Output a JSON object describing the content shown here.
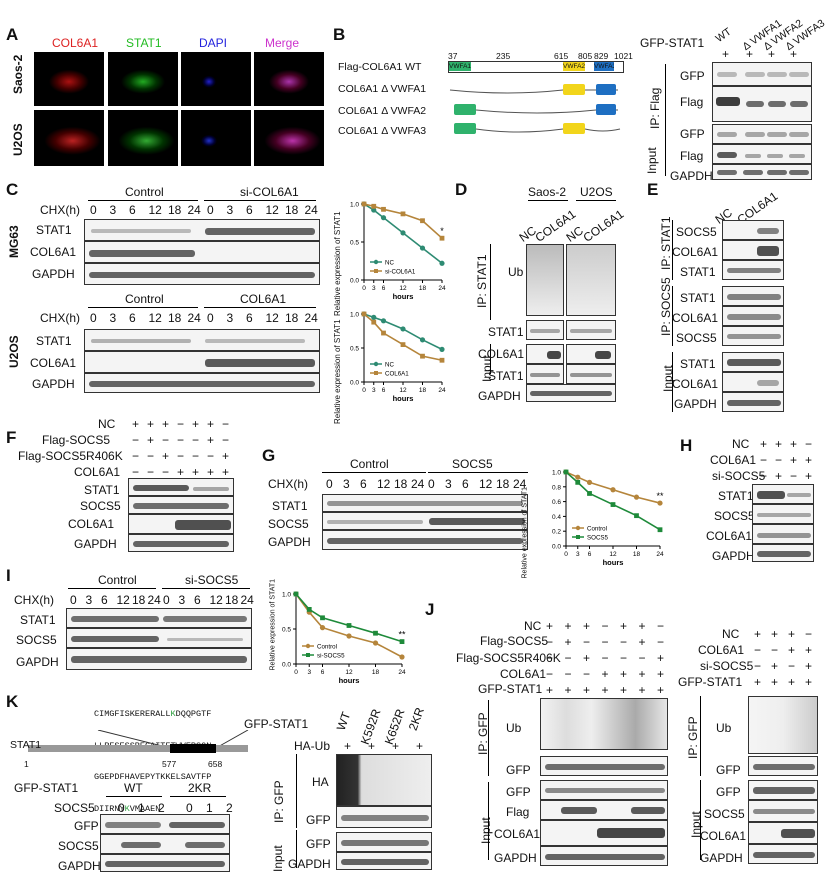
{
  "panels": {
    "A": {
      "label": "A",
      "cols": [
        "COL6A1",
        "STAT1",
        "DAPI",
        "Merge"
      ],
      "col_colors": [
        "#d22",
        "#2b2",
        "#22d",
        "#c3c"
      ],
      "rows": [
        "Saos-2",
        "U2OS"
      ]
    },
    "B": {
      "label": "B",
      "constructs": [
        "Flag-COL6A1 WT",
        "COL6A1 Δ VWFA1",
        "COL6A1 Δ VWFA2",
        "COL6A1 Δ VWFA3"
      ],
      "positions": [
        "37",
        "235",
        "615",
        "805",
        "829",
        "1021"
      ],
      "domains": [
        "VWFA1",
        "VWFA2",
        "VWFA3"
      ],
      "domain_colors": [
        "#2fb26c",
        "#f2d51b",
        "#1e6fc2"
      ],
      "blot_header": "GFP-STAT1",
      "lanes": [
        "WT",
        "Δ VWFA1",
        "Δ VWFA2",
        "Δ VWFA3"
      ],
      "plus_row": [
        "+",
        "+",
        "+",
        "+"
      ],
      "ip_label": "IP: Flag",
      "ip_rows": [
        "GFP",
        "Flag"
      ],
      "input_label": "Input",
      "input_rows": [
        "GFP",
        "Flag",
        "GAPDH"
      ]
    },
    "C": {
      "label": "C",
      "cell_top": "MG63",
      "cell_bottom": "U2OS",
      "top_groups": [
        "Control",
        "si-COL6A1"
      ],
      "bottom_groups": [
        "Control",
        "COL6A1"
      ],
      "chx_label": "CHX(h)",
      "timepoints": [
        "0",
        "3",
        "6",
        "12",
        "18",
        "24",
        "0",
        "3",
        "6",
        "12",
        "18",
        "24"
      ],
      "top_rows": [
        "STAT1",
        "COL6A1",
        "GAPDH"
      ],
      "bottom_rows": [
        "STAT1",
        "COL6A1",
        "GAPDH"
      ],
      "chart_ylabel": "Relative expression of STAT1",
      "chart_xlabel": "hours"
    },
    "D": {
      "label": "D",
      "groups": [
        "Saos-2",
        "U2OS"
      ],
      "lanes": [
        "NC",
        "COL6A1",
        "NC",
        "COL6A1"
      ],
      "ip_label": "IP: STAT1",
      "ip_rows": [
        "Ub",
        "STAT1"
      ],
      "input_label": "Input",
      "input_rows": [
        "COL6A1",
        "STAT1",
        "GAPDH"
      ]
    },
    "E": {
      "label": "E",
      "lanes": [
        "NC",
        "COL6A1"
      ],
      "ip1_label": "IP: STAT1",
      "ip1_rows": [
        "SOCS5",
        "COL6A1",
        "STAT1"
      ],
      "ip2_label": "IP: SOCS5",
      "ip2_rows": [
        "STAT1",
        "COL6A1",
        "SOCS5"
      ],
      "input_label": "Input",
      "input_rows": [
        "STAT1",
        "COL6A1",
        "GAPDH"
      ]
    },
    "F": {
      "label": "F",
      "conditions": [
        "NC",
        "Flag-SOCS5",
        "Flag-SOCS5R406K",
        "COL6A1"
      ],
      "signs": [
        [
          "+",
          "+",
          "+",
          "−",
          "+",
          "+",
          "−"
        ],
        [
          "−",
          "+",
          "−",
          "−",
          "−",
          "+",
          "−"
        ],
        [
          "−",
          "−",
          "+",
          "−",
          "−",
          "−",
          "+"
        ],
        [
          "−",
          "−",
          "−",
          "+",
          "+",
          "+",
          "+"
        ]
      ],
      "rows": [
        "STAT1",
        "SOCS5",
        "COL6A1",
        "GAPDH"
      ]
    },
    "G": {
      "label": "G",
      "groups": [
        "Control",
        "SOCS5"
      ],
      "chx_label": "CHX(h)",
      "timepoints": [
        "0",
        "3",
        "6",
        "12",
        "18",
        "24",
        "0",
        "3",
        "6",
        "12",
        "18",
        "24"
      ],
      "rows": [
        "STAT1",
        "SOCS5",
        "GAPDH"
      ],
      "chart_ylabel": "Relative expression of STAT1",
      "chart_xlabel": "hours"
    },
    "H": {
      "label": "H",
      "conditions": [
        "NC",
        "COL6A1",
        "si-SOCS5"
      ],
      "signs": [
        [
          "+",
          "+",
          "+",
          "−"
        ],
        [
          "−",
          "−",
          "+",
          "+"
        ],
        [
          "−",
          "+",
          "−",
          "+"
        ]
      ],
      "rows": [
        "STAT1",
        "SOCS5",
        "COL6A1",
        "GAPDH"
      ]
    },
    "I": {
      "label": "I",
      "groups": [
        "Control",
        "si-SOCS5"
      ],
      "chx_label": "CHX(h)",
      "timepoints": [
        "0",
        "3",
        "6",
        "12",
        "18",
        "24",
        "0",
        "3",
        "6",
        "12",
        "18",
        "24"
      ],
      "rows": [
        "STAT1",
        "SOCS5",
        "GAPDH"
      ],
      "chart_ylabel": "Relative expression of STAT1",
      "chart_xlabel": "hours"
    },
    "J": {
      "label": "J",
      "left_conditions": [
        "NC",
        "Flag-SOCS5",
        "Flag-SOCS5R406K",
        "COL6A1",
        "GFP-STAT1"
      ],
      "left_signs": [
        [
          "+",
          "+",
          "+",
          "−",
          "+",
          "+",
          "−"
        ],
        [
          "−",
          "+",
          "−",
          "−",
          "−",
          "+",
          "−"
        ],
        [
          "−",
          "−",
          "+",
          "−",
          "−",
          "−",
          "+"
        ],
        [
          "−",
          "−",
          "−",
          "+",
          "+",
          "+",
          "+"
        ],
        [
          "+",
          "+",
          "+",
          "+",
          "+",
          "+",
          "+"
        ]
      ],
      "left_ip_label": "IP: GFP",
      "left_ip_rows": [
        "Ub",
        "GFP"
      ],
      "left_input_label": "Input",
      "left_input_rows": [
        "GFP",
        "Flag",
        "COL6A1",
        "GAPDH"
      ],
      "right_conditions": [
        "NC",
        "COL6A1",
        "si-SOCS5",
        "GFP-STAT1"
      ],
      "right_signs": [
        [
          "+",
          "+",
          "+",
          "−"
        ],
        [
          "−",
          "−",
          "+",
          "+"
        ],
        [
          "−",
          "+",
          "−",
          "+"
        ],
        [
          "+",
          "+",
          "+",
          "+"
        ]
      ],
      "right_ip_label": "IP: GFP",
      "right_ip_rows": [
        "Ub",
        "GFP"
      ],
      "right_input_label": "Input",
      "right_input_rows": [
        "GFP",
        "SOCS5",
        "COL6A1",
        "GAPDH"
      ]
    },
    "K": {
      "label": "K",
      "sequence_lines": [
        [
          "CIMGFISKERERALL",
          "K",
          "DQQPGTF"
        ],
        [
          "LLRFSESSREGAITFTWVERSQN",
          "",
          ""
        ],
        [
          "GGEPDFHAVEPYTKKELSAVTFP",
          "",
          ""
        ],
        [
          "DIIRNY",
          "K",
          "VMAAEN"
        ]
      ],
      "protein": "STAT1",
      "residue_marks": [
        "1",
        "577",
        "658"
      ],
      "left_header": "GFP-STAT1",
      "left_groups": [
        "WT",
        "2KR"
      ],
      "socs_label": "SOCS5",
      "socs_levels": [
        "0",
        "1",
        "2",
        "0",
        "1",
        "2"
      ],
      "left_rows": [
        "GFP",
        "SOCS5",
        "GAPDH"
      ],
      "right_header": "GFP-STAT1",
      "right_lanes": [
        "WT",
        "K592R",
        "K652R",
        "2KR"
      ],
      "haub_label": "HA-Ub",
      "haub_signs": [
        "+",
        "+",
        "+",
        "+"
      ],
      "ip_label": "IP: GFP",
      "ip_rows": [
        "HA",
        "GFP"
      ],
      "input_label": "Input",
      "input_rows": [
        "GFP",
        "GAPDH"
      ]
    }
  },
  "chart_data": [
    {
      "type": "line",
      "id": "C-top",
      "x": [
        0,
        3,
        6,
        12,
        18,
        24
      ],
      "xlabel": "hours",
      "ylabel": "Relative expression of STAT1",
      "ylim": [
        0,
        1.0
      ],
      "yticks": [
        "0.0",
        "0.5",
        "1.0"
      ],
      "series": [
        {
          "name": "NC",
          "color": "#2e8b73",
          "marker": "circle",
          "values": [
            1.0,
            0.92,
            0.82,
            0.62,
            0.42,
            0.22
          ]
        },
        {
          "name": "si-COL6A1",
          "color": "#b5853b",
          "marker": "square",
          "values": [
            1.0,
            0.97,
            0.93,
            0.87,
            0.78,
            0.55
          ]
        }
      ],
      "annotation": "*",
      "legend": "bottom-left"
    },
    {
      "type": "line",
      "id": "C-bottom",
      "x": [
        0,
        3,
        6,
        12,
        18,
        24
      ],
      "xlabel": "hours",
      "ylabel": "Relative expression of STAT1",
      "ylim": [
        0,
        1.0
      ],
      "yticks": [
        "0.0",
        "0.5",
        "1.0"
      ],
      "series": [
        {
          "name": "NC",
          "color": "#2e8b73",
          "marker": "circle",
          "values": [
            1.0,
            0.95,
            0.9,
            0.78,
            0.62,
            0.48
          ]
        },
        {
          "name": "COL6A1",
          "color": "#b5853b",
          "marker": "square",
          "values": [
            1.0,
            0.88,
            0.72,
            0.55,
            0.38,
            0.32
          ]
        }
      ],
      "legend": "bottom-left"
    },
    {
      "type": "line",
      "id": "G",
      "x": [
        0,
        3,
        6,
        12,
        18,
        24
      ],
      "xlabel": "hours",
      "ylabel": "Relative expression of STAT1",
      "ylim": [
        0,
        1.0
      ],
      "yticks": [
        "0.0",
        "0.2",
        "0.4",
        "0.6",
        "0.8",
        "1.0"
      ],
      "series": [
        {
          "name": "Control",
          "color": "#b5853b",
          "marker": "circle",
          "values": [
            1.0,
            0.93,
            0.86,
            0.76,
            0.66,
            0.58
          ]
        },
        {
          "name": "SOCS5",
          "color": "#1e8a3a",
          "marker": "square",
          "values": [
            1.0,
            0.86,
            0.71,
            0.56,
            0.41,
            0.22
          ]
        }
      ],
      "annotation": "**",
      "legend": "bottom-left"
    },
    {
      "type": "line",
      "id": "I",
      "x": [
        0,
        3,
        6,
        12,
        18,
        24
      ],
      "xlabel": "hours",
      "ylabel": "Relative expression of STAT1",
      "ylim": [
        0,
        1.0
      ],
      "yticks": [
        "0.0",
        "0.5",
        "1.0"
      ],
      "series": [
        {
          "name": "Control",
          "color": "#b5853b",
          "marker": "circle",
          "values": [
            1.0,
            0.74,
            0.52,
            0.4,
            0.3,
            0.1
          ]
        },
        {
          "name": "si-SOCS5",
          "color": "#1e8a3a",
          "marker": "square",
          "values": [
            1.0,
            0.78,
            0.66,
            0.55,
            0.44,
            0.32
          ]
        }
      ],
      "annotation": "**",
      "legend": "bottom-left"
    }
  ]
}
